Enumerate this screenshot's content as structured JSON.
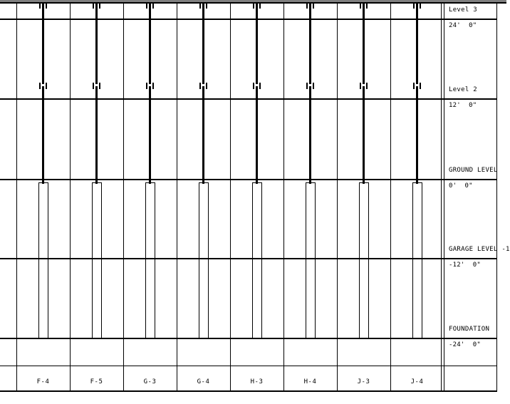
{
  "window": {
    "top_edge_color": "#7f7f7f"
  },
  "schedule": {
    "line_color": "#000000",
    "levels": [
      {
        "name": "Level 3",
        "elevation": "24'  0\""
      },
      {
        "name": "Level 2",
        "elevation": "12'  0\""
      },
      {
        "name": "GROUND LEVEL",
        "elevation": "0'  0\""
      },
      {
        "name": "GARAGE LEVEL -1",
        "elevation": "-12'  0\""
      },
      {
        "name": "FOUNDATION",
        "elevation": "-24'  0\""
      }
    ],
    "columns": [
      {
        "label": "F-4"
      },
      {
        "label": "F-5"
      },
      {
        "label": "G-3"
      },
      {
        "label": "G-4"
      },
      {
        "label": "H-3"
      },
      {
        "label": "H-4"
      },
      {
        "label": "J-3"
      },
      {
        "label": "J-4"
      }
    ]
  }
}
